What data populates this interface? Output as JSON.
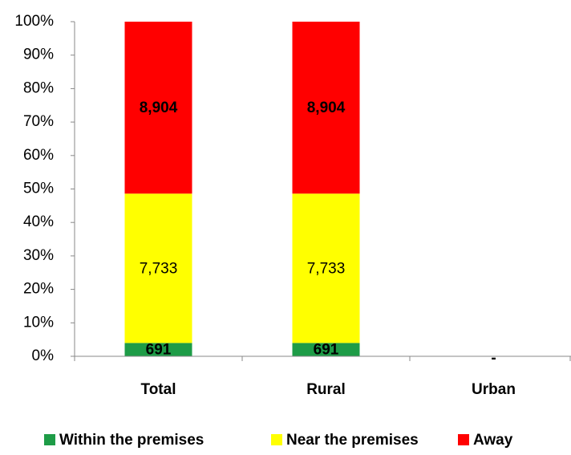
{
  "chart_data": {
    "type": "bar",
    "stacking": "percent",
    "categories": [
      "Total",
      "Rural",
      "Urban"
    ],
    "series": [
      {
        "name": "Within the premises",
        "color": "#1e9c47",
        "label_color": "#ffffff",
        "label_bold": true,
        "values": [
          691,
          691,
          0
        ],
        "value_labels": [
          "691",
          "691",
          "-"
        ]
      },
      {
        "name": "Near the premises",
        "color": "#ffff00",
        "label_color": "#000000",
        "label_bold": false,
        "values": [
          7733,
          7733,
          0
        ],
        "value_labels": [
          "7,733",
          "7,733",
          null
        ]
      },
      {
        "name": "Away",
        "color": "#ff0000",
        "label_color": "#000000",
        "label_bold": true,
        "values": [
          8904,
          8904,
          0
        ],
        "value_labels": [
          "8,904",
          "8,904",
          null
        ]
      }
    ],
    "ylim": [
      0,
      100
    ],
    "yticks": [
      {
        "value": 0,
        "label": "0%"
      },
      {
        "value": 10,
        "label": "10%"
      },
      {
        "value": 20,
        "label": "20%"
      },
      {
        "value": 30,
        "label": "30%"
      },
      {
        "value": 40,
        "label": "40%"
      },
      {
        "value": 50,
        "label": "50%"
      },
      {
        "value": 60,
        "label": "60%"
      },
      {
        "value": 70,
        "label": "70%"
      },
      {
        "value": 80,
        "label": "80%"
      },
      {
        "value": 90,
        "label": "90%"
      },
      {
        "value": 100,
        "label": "100%"
      }
    ],
    "grid": false,
    "legend": "bottom"
  }
}
